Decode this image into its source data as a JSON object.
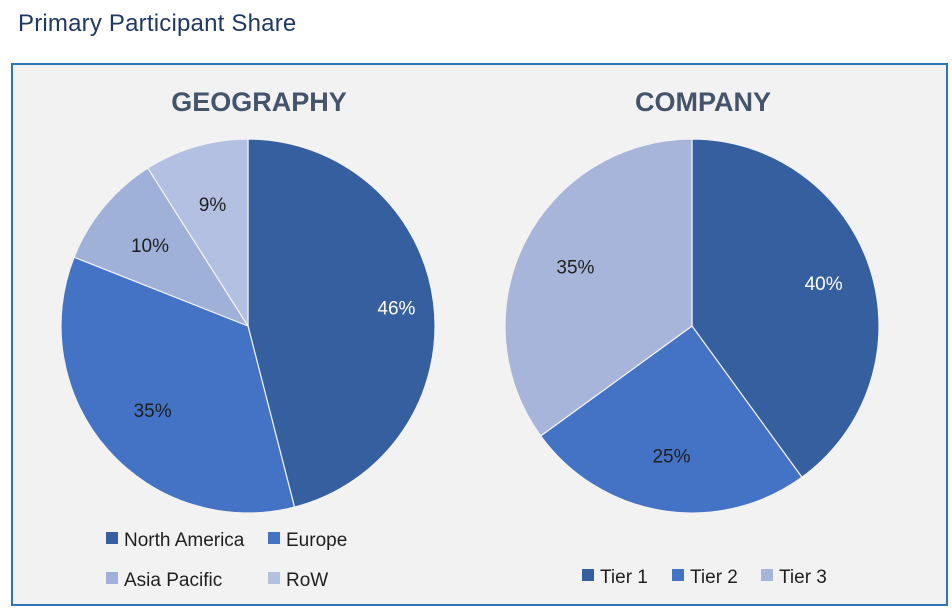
{
  "page": {
    "title": "Primary Participant Share"
  },
  "chart_data": [
    {
      "type": "pie",
      "title": "GEOGRAPHY",
      "categories": [
        "North America",
        "Europe",
        "Asia Pacific",
        "RoW"
      ],
      "values": [
        46,
        35,
        10,
        9
      ],
      "labels": [
        "46%",
        "35%",
        "10%",
        "9%"
      ],
      "colors": [
        "#365f9f",
        "#4472c4",
        "#a0b1d9",
        "#b4c0e1"
      ],
      "label_colors": [
        "#ffffff",
        "#1f1f1f",
        "#1f1f1f",
        "#1f1f1f"
      ],
      "start_angle_deg": 0,
      "direction": "clockwise",
      "legend": {
        "position": "bottom",
        "rows": [
          [
            "North America",
            "Europe"
          ],
          [
            "Asia Pacific",
            "RoW"
          ]
        ]
      }
    },
    {
      "type": "pie",
      "title": "COMPANY",
      "categories": [
        "Tier 1",
        "Tier 2",
        "Tier 3"
      ],
      "values": [
        40,
        25,
        35
      ],
      "labels": [
        "40%",
        "25%",
        "35%"
      ],
      "colors": [
        "#365f9f",
        "#4472c4",
        "#a8b5da"
      ],
      "label_colors": [
        "#ffffff",
        "#1f1f1f",
        "#1f1f1f"
      ],
      "start_angle_deg": 0,
      "direction": "clockwise",
      "legend": {
        "position": "bottom",
        "rows": [
          [
            "Tier 1",
            "Tier 2",
            "Tier 3"
          ]
        ]
      }
    }
  ]
}
